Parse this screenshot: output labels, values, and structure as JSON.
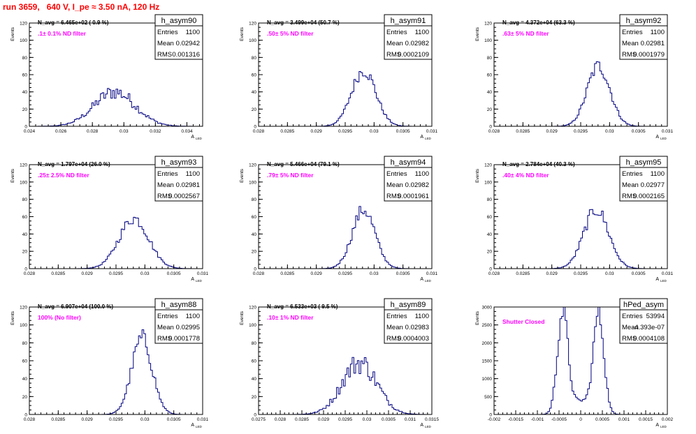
{
  "page_title": "run 3659,   640 V, I_pe ≈ 3.50 nA, 120 Hz",
  "axis_labels": {
    "y": "Events",
    "x": "A",
    "x_sub": "LED"
  },
  "stats_labels": {
    "entries": "Entries",
    "mean": "Mean",
    "rms": "RMS"
  },
  "colors": {
    "title": "#ff0000",
    "annotation": "#ff00ff",
    "histogram": "#000080",
    "axis": "#000000"
  },
  "chart_data": [
    {
      "type": "histogram",
      "name": "h_asym90",
      "stats": {
        "entries": "1100",
        "mean": "0.02942",
        "rms": "0.001316"
      },
      "navg": "N_avg = 6.465e+02 ( 0.9 %)",
      "note": ".1± 0.1% ND filter",
      "xlim": [
        0.024,
        0.035
      ],
      "xticks": [
        0.024,
        0.026,
        0.028,
        0.03,
        0.032,
        0.034
      ],
      "xtick_labels": [
        "0.024",
        "0.026",
        "0.028",
        "0.03",
        "0.032",
        "0.034"
      ],
      "ylim": [
        0,
        120
      ],
      "yticks": [
        0,
        20,
        40,
        60,
        80,
        100,
        120
      ],
      "ytick_labels": [
        "0",
        "20",
        "40",
        "60",
        "80",
        "100",
        "120"
      ],
      "mean": 0.02942,
      "sigma": 0.001316,
      "peak": 40,
      "bins": "bumpy"
    },
    {
      "type": "histogram",
      "name": "h_asym91",
      "stats": {
        "entries": "1100",
        "mean": "0.02982",
        "rms": "0.0002109"
      },
      "navg": "N_avg = 3.499e+04 (50.7 %)",
      "note": ".50± 5% ND filter",
      "xlim": [
        0.028,
        0.031
      ],
      "xticks": [
        0.028,
        0.0285,
        0.029,
        0.0295,
        0.03,
        0.0305,
        0.031
      ],
      "xtick_labels": [
        "0.028",
        "0.0285",
        "0.029",
        "0.0295",
        "0.03",
        "0.0305",
        "0.031"
      ],
      "ylim": [
        0,
        120
      ],
      "yticks": [
        0,
        20,
        40,
        60,
        80,
        100,
        120
      ],
      "ytick_labels": [
        "0",
        "20",
        "40",
        "60",
        "80",
        "100",
        "120"
      ],
      "mean": 0.02982,
      "sigma": 0.0002109,
      "peak": 65,
      "bins": "normal"
    },
    {
      "type": "histogram",
      "name": "h_asym92",
      "stats": {
        "entries": "1100",
        "mean": "0.02981",
        "rms": "0.0001979"
      },
      "navg": "N_avg = 4.372e+04 (63.3 %)",
      "note": ".63± 5% ND filter",
      "xlim": [
        0.028,
        0.031
      ],
      "xticks": [
        0.028,
        0.0285,
        0.029,
        0.0295,
        0.03,
        0.0305,
        0.031
      ],
      "xtick_labels": [
        "0.028",
        "0.0285",
        "0.029",
        "0.0295",
        "0.03",
        "0.0305",
        "0.031"
      ],
      "ylim": [
        0,
        120
      ],
      "yticks": [
        0,
        20,
        40,
        60,
        80,
        100,
        120
      ],
      "ytick_labels": [
        "0",
        "20",
        "40",
        "60",
        "80",
        "100",
        "120"
      ],
      "mean": 0.02981,
      "sigma": 0.0001979,
      "peak": 70,
      "bins": "normal"
    },
    {
      "type": "histogram",
      "name": "h_asym93",
      "stats": {
        "entries": "1100",
        "mean": "0.02981",
        "rms": "0.0002567"
      },
      "navg": "N_avg = 1.797e+04 (26.0 %)",
      "note": ".25± 2.5% ND filter",
      "xlim": [
        0.028,
        0.031
      ],
      "xticks": [
        0.028,
        0.0285,
        0.029,
        0.0295,
        0.03,
        0.0305,
        0.031
      ],
      "xtick_labels": [
        "0.028",
        "0.0285",
        "0.029",
        "0.0295",
        "0.03",
        "0.0305",
        "0.031"
      ],
      "ylim": [
        0,
        120
      ],
      "yticks": [
        0,
        20,
        40,
        60,
        80,
        100,
        120
      ],
      "ytick_labels": [
        "0",
        "20",
        "40",
        "60",
        "80",
        "100",
        "120"
      ],
      "mean": 0.02981,
      "sigma": 0.0002567,
      "peak": 58,
      "bins": "normal"
    },
    {
      "type": "histogram",
      "name": "h_asym94",
      "stats": {
        "entries": "1100",
        "mean": "0.02982",
        "rms": "0.0001961"
      },
      "navg": "N_avg = 5.466e+04 (79.1 %)",
      "note": ".79± 5% ND filter",
      "xlim": [
        0.028,
        0.031
      ],
      "xticks": [
        0.028,
        0.0285,
        0.029,
        0.0295,
        0.03,
        0.0305,
        0.031
      ],
      "xtick_labels": [
        "0.028",
        "0.0285",
        "0.029",
        "0.0295",
        "0.03",
        "0.0305",
        "0.031"
      ],
      "ylim": [
        0,
        120
      ],
      "yticks": [
        0,
        20,
        40,
        60,
        80,
        100,
        120
      ],
      "ytick_labels": [
        "0",
        "20",
        "40",
        "60",
        "80",
        "100",
        "120"
      ],
      "mean": 0.02982,
      "sigma": 0.0001961,
      "peak": 68,
      "bins": "normal"
    },
    {
      "type": "histogram",
      "name": "h_asym95",
      "stats": {
        "entries": "1100",
        "mean": "0.02977",
        "rms": "0.0002165"
      },
      "navg": "N_avg = 2.784e+04 (40.3 %)",
      "note": ".40± 4% ND filter",
      "xlim": [
        0.028,
        0.031
      ],
      "xticks": [
        0.028,
        0.0285,
        0.029,
        0.0295,
        0.03,
        0.0305,
        0.031
      ],
      "xtick_labels": [
        "0.028",
        "0.0285",
        "0.029",
        "0.0295",
        "0.03",
        "0.0305",
        "0.031"
      ],
      "ylim": [
        0,
        120
      ],
      "yticks": [
        0,
        20,
        40,
        60,
        80,
        100,
        120
      ],
      "ytick_labels": [
        "0",
        "20",
        "40",
        "60",
        "80",
        "100",
        "120"
      ],
      "mean": 0.02977,
      "sigma": 0.0002165,
      "peak": 68,
      "bins": "normal"
    },
    {
      "type": "histogram",
      "name": "h_asym88",
      "stats": {
        "entries": "1100",
        "mean": "0.02995",
        "rms": "0.0001778"
      },
      "navg": "N_avg = 6.907e+04 (100.0 %)",
      "note": "100% (No filter)",
      "xlim": [
        0.028,
        0.031
      ],
      "xticks": [
        0.028,
        0.0285,
        0.029,
        0.0295,
        0.03,
        0.0305,
        0.031
      ],
      "xtick_labels": [
        "0.028",
        "0.0285",
        "0.029",
        "0.0295",
        "0.03",
        "0.0305",
        "0.031"
      ],
      "ylim": [
        0,
        120
      ],
      "yticks": [
        0,
        20,
        40,
        60,
        80,
        100,
        120
      ],
      "ytick_labels": [
        "0",
        "20",
        "40",
        "60",
        "80",
        "100",
        "120"
      ],
      "mean": 0.02995,
      "sigma": 0.0001778,
      "peak": 85,
      "bins": "normal"
    },
    {
      "type": "histogram",
      "name": "h_asym89",
      "stats": {
        "entries": "1100",
        "mean": "0.02983",
        "rms": "0.0004003"
      },
      "navg": "N_avg = 6.533e+03 ( 9.5 %)",
      "note": ".10± 1% ND filter",
      "xlim": [
        0.0275,
        0.0315
      ],
      "xticks": [
        0.0275,
        0.028,
        0.0285,
        0.029,
        0.0295,
        0.03,
        0.0305,
        0.031,
        0.0315
      ],
      "xtick_labels": [
        "0.0275",
        "0.028",
        "0.0285",
        "0.029",
        "0.0295",
        "0.03",
        "0.0305",
        "0.031",
        "0.0315"
      ],
      "ylim": [
        0,
        120
      ],
      "yticks": [
        0,
        20,
        40,
        60,
        80,
        100,
        120
      ],
      "ytick_labels": [
        "0",
        "20",
        "40",
        "60",
        "80",
        "100",
        "120"
      ],
      "mean": 0.02983,
      "sigma": 0.0004003,
      "peak": 58,
      "bins": "bumpy"
    },
    {
      "type": "histogram",
      "name": "hPed_asym",
      "stats": {
        "entries": "53994",
        "mean": "-4.393e-07",
        "rms": "0.0004108"
      },
      "navg": "",
      "note": "Shutter Closed",
      "xlim": [
        -0.002,
        0.002
      ],
      "xticks": [
        -0.002,
        -0.0015,
        -0.001,
        -0.0005,
        0,
        0.0005,
        0.001,
        0.0015,
        0.002
      ],
      "xtick_labels": [
        "-0.002",
        "-0.0015",
        "-0.001",
        "-0.0005",
        "0",
        "0.0005",
        "0.001",
        "0.0015",
        "0.002"
      ],
      "ylim": [
        0,
        3000
      ],
      "yticks": [
        0,
        500,
        1000,
        1500,
        2000,
        2500,
        3000
      ],
      "ytick_labels": [
        "0",
        "500",
        "1000",
        "1500",
        "2000",
        "2500",
        "3000"
      ],
      "mean": 0,
      "sigma": 0.0004108,
      "peak": 2850,
      "bins": "double"
    }
  ]
}
